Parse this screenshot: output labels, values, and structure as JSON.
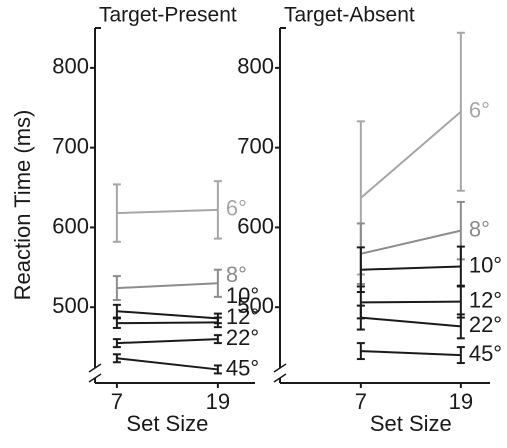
{
  "chart_data": [
    {
      "type": "line",
      "title": "Target-Present",
      "ylabel": "Reaction Time (ms)",
      "xlabel": "Set Size",
      "x": [
        7,
        19
      ],
      "xlim": [
        4.4,
        24.6
      ],
      "xticks": [
        7,
        19
      ],
      "ylim": [
        405,
        850
      ],
      "yticks": [
        500,
        600,
        700,
        800
      ],
      "series": [
        {
          "name": "6°",
          "color": "#a6a6a6",
          "values": [
            618,
            622
          ],
          "errors": [
            36,
            36
          ]
        },
        {
          "name": "8°",
          "color": "#8c8c8c",
          "values": [
            524,
            530
          ],
          "errors": [
            15,
            17
          ]
        },
        {
          "name": "10°",
          "color": "#1a1a1a",
          "values": [
            495,
            486
          ],
          "errors": [
            8,
            6
          ]
        },
        {
          "name": "12°",
          "color": "#1a1a1a",
          "values": [
            480,
            481
          ],
          "errors": [
            6,
            6
          ]
        },
        {
          "name": "22°",
          "color": "#1a1a1a",
          "values": [
            455,
            460
          ],
          "errors": [
            5,
            5
          ]
        },
        {
          "name": "45°",
          "color": "#1a1a1a",
          "values": [
            436,
            422
          ],
          "errors": [
            5,
            5
          ]
        }
      ]
    },
    {
      "type": "line",
      "title": "Target-Absent",
      "xlabel": "Set Size",
      "x": [
        7,
        19
      ],
      "xlim": [
        -2.7,
        23.7
      ],
      "xticks": [
        7,
        19
      ],
      "ylim": [
        405,
        850
      ],
      "yticks": [
        500,
        600,
        700,
        800
      ],
      "series": [
        {
          "name": "6°",
          "color": "#a6a6a6",
          "values": [
            637,
            745
          ],
          "errors": [
            96,
            99
          ]
        },
        {
          "name": "8°",
          "color": "#8c8c8c",
          "values": [
            567,
            596
          ],
          "errors": [
            38,
            36
          ]
        },
        {
          "name": "10°",
          "color": "#1a1a1a",
          "values": [
            547,
            551
          ],
          "errors": [
            28,
            25
          ]
        },
        {
          "name": "12°",
          "color": "#1a1a1a",
          "values": [
            506,
            507
          ],
          "errors": [
            20,
            20
          ]
        },
        {
          "name": "22°",
          "color": "#1a1a1a",
          "values": [
            487,
            476
          ],
          "errors": [
            15,
            15
          ]
        },
        {
          "name": "45°",
          "color": "#1a1a1a",
          "values": [
            445,
            440
          ],
          "errors": [
            10,
            10
          ]
        }
      ]
    }
  ]
}
